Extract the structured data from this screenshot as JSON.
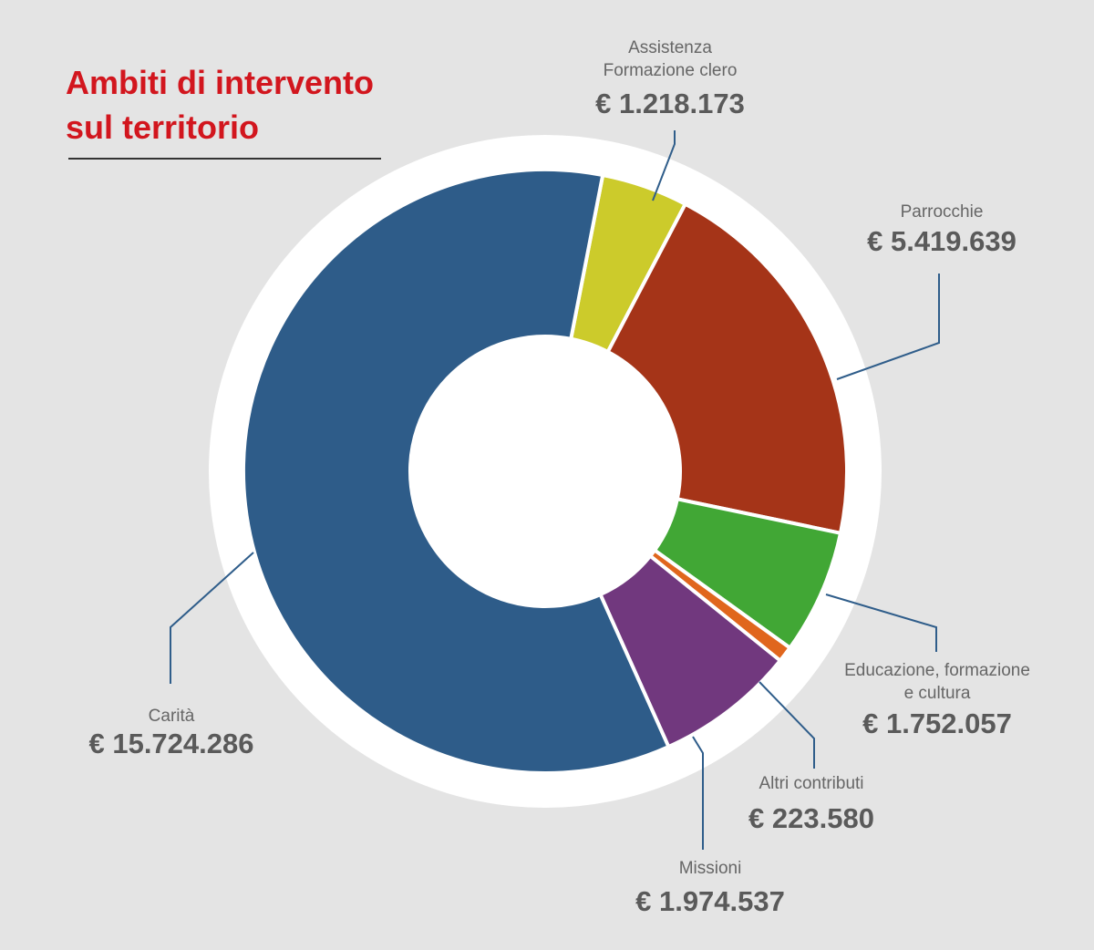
{
  "chart_data": {
    "type": "pie",
    "title": "Ambiti di intervento sul territorio",
    "title_lines": [
      "Ambiti di intervento",
      "sul territorio"
    ],
    "currency": "€",
    "slices": [
      {
        "labels": [
          "Assistenza",
          "Formazione clero"
        ],
        "value": 1218173,
        "value_text": "€ 1.218.173",
        "color": "#cccb2b"
      },
      {
        "labels": [
          "Parrocchie"
        ],
        "value": 5419639,
        "value_text": "€ 5.419.639",
        "color": "#a53418"
      },
      {
        "labels": [
          "Educazione, formazione",
          "e cultura"
        ],
        "value": 1752057,
        "value_text": "€ 1.752.057",
        "color": "#41a735"
      },
      {
        "labels": [
          "Altri contributi"
        ],
        "value": 223580,
        "value_text": "€ 223.580",
        "color": "#e0661d"
      },
      {
        "labels": [
          "Missioni"
        ],
        "value": 1974537,
        "value_text": "€ 1.974.537",
        "color": "#71387e"
      },
      {
        "labels": [
          "Carità"
        ],
        "value": 15724286,
        "value_text": "€ 15.724.286",
        "color": "#2e5c89"
      }
    ],
    "background_color": "#e4e4e4",
    "title_color": "#d2161e",
    "leader_color": "#2f5d8a"
  }
}
